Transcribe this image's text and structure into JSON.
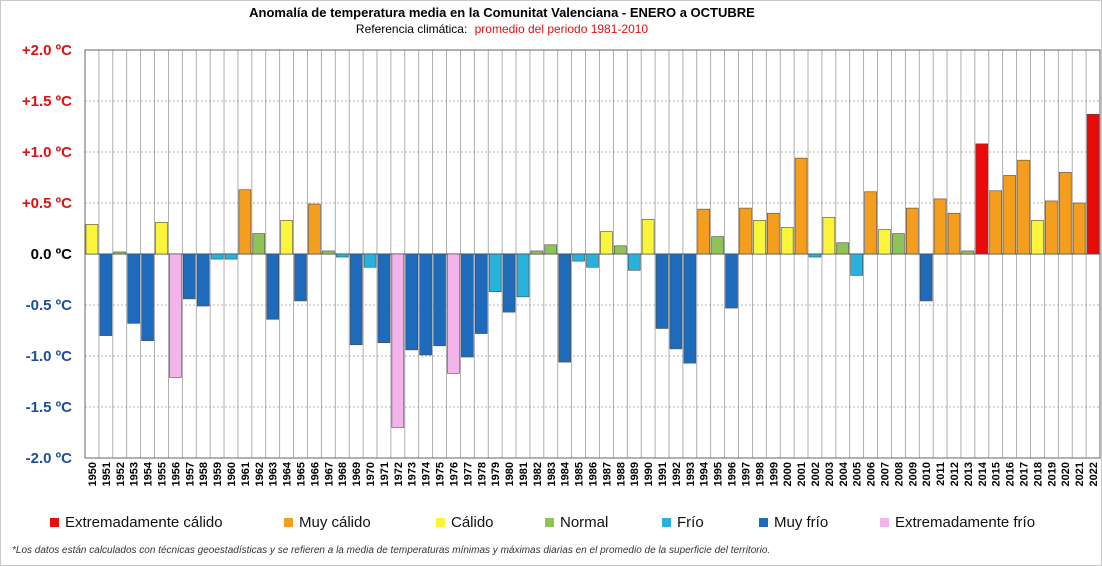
{
  "chart_data": {
    "type": "bar",
    "title": "Anomalía de temperatura media en la Comunitat Valenciana - ENERO a OCTUBRE",
    "subtitle_prefix": "Referencia climática:",
    "subtitle_highlight": "promedio del periodo 1981-2010",
    "ylim": [
      -2.0,
      2.0
    ],
    "yticks": [
      {
        "value": 2.0,
        "label": "+2.0 ºC"
      },
      {
        "value": 1.5,
        "label": "+1.5 ºC"
      },
      {
        "value": 1.0,
        "label": "+1.0 ºC"
      },
      {
        "value": 0.5,
        "label": "+0.5 ºC"
      },
      {
        "value": 0.0,
        "label": "0.0 ºC"
      },
      {
        "value": -0.5,
        "label": "-0.5 ºC"
      },
      {
        "value": -1.0,
        "label": "-1.0 ºC"
      },
      {
        "value": -1.5,
        "label": "-1.5 ºC"
      },
      {
        "value": -2.0,
        "label": "-2.0 ºC"
      }
    ],
    "categories": [
      "1950",
      "1951",
      "1952",
      "1953",
      "1954",
      "1955",
      "1956",
      "1957",
      "1958",
      "1959",
      "1960",
      "1961",
      "1962",
      "1963",
      "1964",
      "1965",
      "1966",
      "1967",
      "1968",
      "1969",
      "1970",
      "1971",
      "1972",
      "1973",
      "1974",
      "1975",
      "1976",
      "1977",
      "1978",
      "1979",
      "1980",
      "1981",
      "1982",
      "1983",
      "1984",
      "1985",
      "1986",
      "1987",
      "1988",
      "1989",
      "1990",
      "1991",
      "1992",
      "1993",
      "1994",
      "1995",
      "1996",
      "1997",
      "1998",
      "1999",
      "2000",
      "2001",
      "2002",
      "2003",
      "2004",
      "2005",
      "2006",
      "2007",
      "2008",
      "2009",
      "2010",
      "2011",
      "2012",
      "2013",
      "2014",
      "2015",
      "2016",
      "2017",
      "2018",
      "2019",
      "2020",
      "2021",
      "2022"
    ],
    "values": [
      0.29,
      -0.8,
      0.02,
      -0.68,
      -0.85,
      0.31,
      -1.21,
      -0.44,
      -0.51,
      -0.05,
      -0.05,
      0.63,
      0.2,
      -0.64,
      0.33,
      -0.46,
      0.49,
      0.03,
      -0.03,
      -0.89,
      -0.13,
      -0.87,
      -1.7,
      -0.94,
      -0.99,
      -0.9,
      -1.17,
      -1.01,
      -0.78,
      -0.37,
      -0.57,
      -0.42,
      0.03,
      0.09,
      -1.06,
      -0.07,
      -0.13,
      0.22,
      0.08,
      -0.16,
      0.34,
      -0.73,
      -0.93,
      -1.07,
      0.44,
      0.17,
      -0.53,
      0.45,
      0.33,
      0.4,
      0.26,
      0.94,
      -0.03,
      0.36,
      0.11,
      -0.21,
      0.61,
      0.24,
      0.2,
      0.45,
      -0.46,
      0.54,
      0.4,
      0.03,
      1.08,
      0.62,
      0.77,
      0.92,
      0.33,
      0.52,
      0.8,
      0.5,
      1.37
    ],
    "classes": [
      "calido",
      "muy_frio",
      "normal",
      "muy_frio",
      "muy_frio",
      "calido",
      "extremadamente_frio",
      "muy_frio",
      "muy_frio",
      "frio",
      "frio",
      "muy_calido",
      "normal",
      "muy_frio",
      "calido",
      "muy_frio",
      "muy_calido",
      "normal",
      "frio",
      "muy_frio",
      "frio",
      "muy_frio",
      "extremadamente_frio",
      "muy_frio",
      "muy_frio",
      "muy_frio",
      "extremadamente_frio",
      "muy_frio",
      "muy_frio",
      "frio",
      "muy_frio",
      "frio",
      "normal",
      "normal",
      "muy_frio",
      "frio",
      "frio",
      "calido",
      "normal",
      "frio",
      "calido",
      "muy_frio",
      "muy_frio",
      "muy_frio",
      "muy_calido",
      "normal",
      "muy_frio",
      "muy_calido",
      "calido",
      "muy_calido",
      "calido",
      "muy_calido",
      "frio",
      "calido",
      "normal",
      "frio",
      "muy_calido",
      "calido",
      "normal",
      "muy_calido",
      "muy_frio",
      "muy_calido",
      "muy_calido",
      "normal",
      "extremadamente_calido",
      "muy_calido",
      "muy_calido",
      "muy_calido",
      "calido",
      "muy_calido",
      "muy_calido",
      "muy_calido",
      "extremadamente_calido"
    ],
    "legend": [
      {
        "key": "extremadamente_calido",
        "label": "Extremadamente cálido",
        "color": "#ea0a0a"
      },
      {
        "key": "muy_calido",
        "label": "Muy cálido",
        "color": "#f59d1d"
      },
      {
        "key": "calido",
        "label": "Cálido",
        "color": "#fbf53a"
      },
      {
        "key": "normal",
        "label": "Normal",
        "color": "#8ec456"
      },
      {
        "key": "frio",
        "label": "Frío",
        "color": "#27b1dc"
      },
      {
        "key": "muy_frio",
        "label": "Muy frío",
        "color": "#1e6bbb"
      },
      {
        "key": "extremadamente_frio",
        "label": "Extremadamente frío",
        "color": "#f2b4ea"
      }
    ],
    "legend_placement": "bottom",
    "grid": true,
    "ytick_color": "#e01010",
    "neg_ytick_color": "#1b4f9a",
    "zero_tick_color": "#000000",
    "subtitle_highlight_color": "#e01010"
  },
  "footnote": "*Los datos están calculados con técnicas geoestadísticas y se refieren a la media de temperaturas mínimas y máximas diarias en el promedio de la superficie del territorio."
}
